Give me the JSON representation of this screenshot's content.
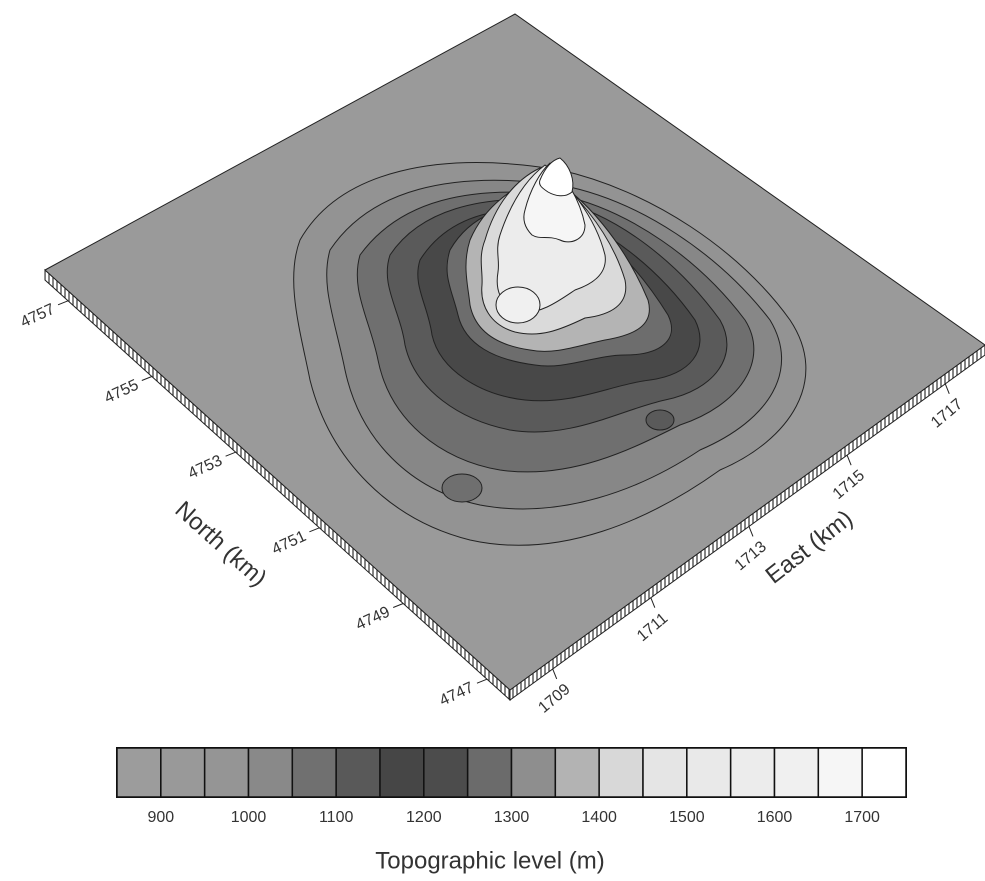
{
  "chart_data": {
    "type": "surface",
    "xlabel": "East (km)",
    "ylabel": "North (km)",
    "xlim": [
      1708.13,
      1717.81
    ],
    "xticks": [
      1709,
      1711,
      1713,
      1715,
      1717
    ],
    "ylim": [
      4746.45,
      4757.55
    ],
    "yticks": [
      4747,
      4749,
      4751,
      4753,
      4755,
      4757
    ],
    "colorbar": {
      "label": "Topographic level (m)",
      "levels": [
        850,
        900,
        950,
        1000,
        1050,
        1100,
        1150,
        1200,
        1250,
        1300,
        1350,
        1400,
        1450,
        1500,
        1550,
        1600,
        1650,
        1700,
        1750
      ],
      "colors": [
        "#9c9c9c",
        "#999999",
        "#959595",
        "#898989",
        "#707070",
        "#595959",
        "#464646",
        "#4c4c4c",
        "#6b6b6b",
        "#8e8e8e",
        "#b3b3b3",
        "#d8d8d8",
        "#e5e5e5",
        "#e9e9e9",
        "#ececec",
        "#f0f0f0",
        "#f6f6f6",
        "#ffffff"
      ],
      "ticks": [
        900,
        1000,
        1100,
        1200,
        1300,
        1400,
        1500,
        1600,
        1700
      ]
    }
  }
}
